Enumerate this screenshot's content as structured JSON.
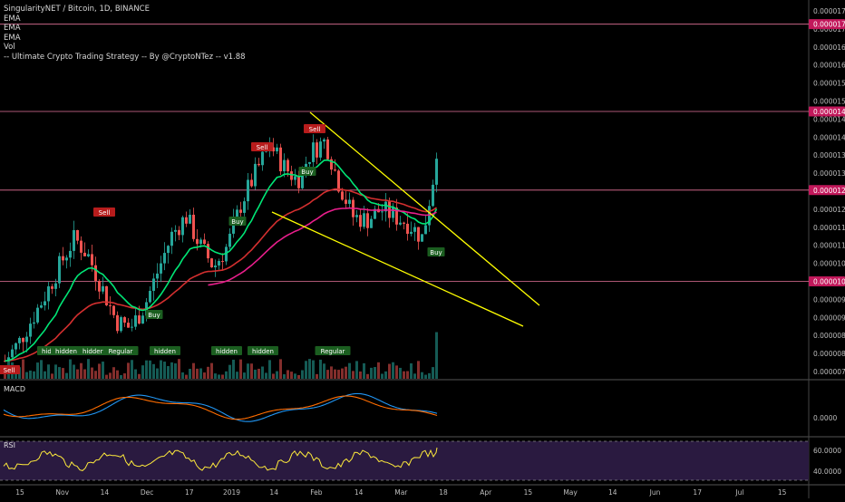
{
  "header": {
    "symbol_line": "SingularityNET / Bitcoin, 1D, BINANCE",
    "indicators": [
      "EMA",
      "EMA",
      "EMA",
      "Vol",
      "-- Ultimate Crypto Trading Strategy -- By @CryptoNTez -- v1.88"
    ]
  },
  "colors": {
    "background": "#000000",
    "candle_up": "#26a69a",
    "candle_down": "#ef5350",
    "ema_red": "#d32f2f",
    "ema_green": "#00e676",
    "ema_magenta": "#e91e8c",
    "trendline": "#ffff00",
    "hline": "#ff80ab",
    "macd_line": "#2196f3",
    "signal_line": "#ff6d00",
    "rsi_line": "#ffeb3b",
    "rsi_bg": "#2a1a40"
  },
  "price_axis": {
    "ticks": [
      "0.00001750",
      "0.00001700",
      "0.00001650",
      "0.00001600",
      "0.00001550",
      "0.00001500",
      "0.00001450",
      "0.00001400",
      "0.00001350",
      "0.00001300",
      "0.00001250",
      "0.00001200",
      "0.00001150",
      "0.00001100",
      "0.00001050",
      "0.00001000",
      "0.00000950",
      "0.00000900",
      "0.00000850",
      "0.00000800",
      "0.00000750"
    ],
    "level_badges": [
      "0.00001713",
      "0.00001471",
      "0.00001253",
      "0.00001000"
    ]
  },
  "time_axis": {
    "labels": [
      "15",
      "Nov",
      "14",
      "Dec",
      "17",
      "2019",
      "14",
      "Feb",
      "14",
      "Mar",
      "18",
      "Apr",
      "15",
      "May",
      "14",
      "Jun",
      "17",
      "Jul",
      "15"
    ]
  },
  "signals": {
    "sell_labels": [
      "Sell",
      "Sell",
      "Sell",
      "Sell",
      "Sell"
    ],
    "buy_labels": [
      "Buy",
      "Buy",
      "Buy",
      "Buy"
    ],
    "divergence_labels": [
      "hidden",
      "hidden",
      "hidden",
      "Regular",
      "hidden",
      "hidden",
      "hidden",
      "Regular"
    ]
  },
  "macd_pane": {
    "label": "MACD",
    "tick": "0.0000"
  },
  "rsi_pane": {
    "label": "RSI",
    "ticks": [
      "60.0000",
      "40.0000"
    ]
  },
  "chart_data": {
    "type": "candlestick",
    "symbol": "SingularityNET / Bitcoin",
    "interval": "1D",
    "exchange": "BINANCE",
    "ylim": [
      7.3e-06,
      1.78e-05
    ],
    "horizontal_levels": [
      1.713e-05,
      1.471e-05,
      1.253e-05,
      1e-05
    ],
    "closes_approx": [
      7.8e-06,
      8.3e-06,
      9e-06,
      9.7e-06,
      1.05e-05,
      1.12e-05,
      1.07e-05,
      9.8e-06,
      8.9e-06,
      8.7e-06,
      9.3e-06,
      1.03e-05,
      1.13e-05,
      1.18e-05,
      1.1e-05,
      1.04e-05,
      1.1e-05,
      1.22e-05,
      1.3e-05,
      1.38e-05,
      1.32e-05,
      1.28e-05,
      1.36e-05,
      1.39e-05,
      1.27e-05,
      1.18e-05,
      1.17e-05,
      1.2e-05,
      1.18e-05,
      1.16e-05,
      1.12e-05,
      1.34e-05
    ]
  }
}
